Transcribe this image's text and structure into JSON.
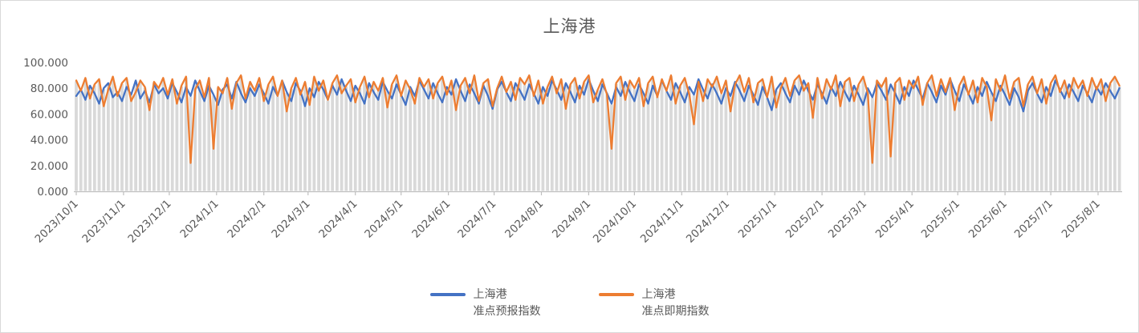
{
  "title": {
    "text": "上海港"
  },
  "legend": {
    "items": [
      {
        "line1": "上海港",
        "line2": "准点预报指数",
        "color": "#4472C4"
      },
      {
        "line1": "上海港",
        "line2": "准点即期指数",
        "color": "#ED7D31"
      }
    ]
  },
  "colors": {
    "forecast_line": "#4472C4",
    "spot_line": "#ED7D31",
    "drop_line": "#D9D9D9",
    "axis_line": "#BFBFBF",
    "text": "#595959"
  },
  "chart_data": {
    "type": "line",
    "title": "上海港",
    "xlabel": "",
    "ylabel": "",
    "ylim": [
      0,
      100
    ],
    "grid": false,
    "legend_position": "bottom",
    "drop_lines": true,
    "x_start_date": "2023/10/1",
    "x_step_days": 3,
    "y_tick_values": [
      0,
      20,
      40,
      60,
      80,
      100
    ],
    "y_tick_labels": [
      "0.000",
      "20.000",
      "40.000",
      "60.000",
      "80.000",
      "100.000"
    ],
    "x_tick_labels": [
      "2023/10/1",
      "2023/11/1",
      "2023/12/1",
      "2024/1/1",
      "2024/2/1",
      "2024/3/1",
      "2024/4/1",
      "2024/5/1",
      "2024/6/1",
      "2024/7/1",
      "2024/8/1",
      "2024/9/1",
      "2024/10/1",
      "2024/11/1",
      "2024/12/1",
      "2025/1/1",
      "2025/2/1",
      "2025/3/1",
      "2025/4/1",
      "2025/5/1",
      "2025/6/1",
      "2025/7/1",
      "2025/8/1"
    ],
    "x_tick_day_offsets": [
      0,
      31,
      61,
      92,
      123,
      152,
      183,
      213,
      244,
      274,
      305,
      336,
      366,
      397,
      427,
      458,
      489,
      517,
      548,
      578,
      609,
      639,
      670
    ],
    "series": [
      {
        "name": "上海港准点预报指数",
        "color": "#4472C4",
        "values": [
          74,
          79,
          71,
          82,
          76,
          68,
          80,
          84,
          73,
          77,
          70,
          81,
          75,
          86,
          72,
          78,
          69,
          83,
          76,
          80,
          72,
          84,
          77,
          69,
          81,
          74,
          86,
          78,
          70,
          82,
          75,
          67,
          79,
          83,
          72,
          85,
          76,
          69,
          80,
          74,
          83,
          76,
          68,
          81,
          74,
          86,
          77,
          70,
          84,
          78,
          66,
          80,
          73,
          85,
          79,
          71,
          82,
          75,
          87,
          78,
          70,
          82,
          76,
          68,
          84,
          77,
          71,
          85,
          78,
          72,
          83,
          75,
          67,
          81,
          74,
          86,
          79,
          72,
          84,
          76,
          69,
          81,
          75,
          87,
          78,
          70,
          83,
          76,
          68,
          82,
          74,
          64,
          79,
          85,
          77,
          70,
          84,
          78,
          71,
          83,
          76,
          68,
          81,
          74,
          86,
          79,
          71,
          84,
          77,
          69,
          82,
          75,
          87,
          78,
          70,
          83,
          76,
          68,
          81,
          74,
          85,
          77,
          70,
          83,
          76,
          68,
          82,
          74,
          86,
          78,
          71,
          84,
          77,
          69,
          81,
          75,
          87,
          79,
          72,
          83,
          76,
          68,
          80,
          74,
          85,
          78,
          70,
          82,
          75,
          67,
          81,
          73,
          63,
          79,
          84,
          76,
          69,
          82,
          75,
          86,
          78,
          71,
          83,
          76,
          68,
          81,
          74,
          85,
          77,
          70,
          82,
          75,
          67,
          80,
          73,
          84,
          78,
          71,
          83,
          76,
          68,
          81,
          74,
          86,
          79,
          72,
          84,
          77,
          69,
          82,
          75,
          87,
          78,
          70,
          83,
          76,
          68,
          81,
          74,
          85,
          77,
          70,
          82,
          75,
          67,
          80,
          73,
          62,
          78,
          84,
          76,
          69,
          81,
          74,
          86,
          79,
          72,
          83,
          77,
          70,
          82,
          76,
          69,
          81,
          75,
          84,
          78,
          72,
          80
        ]
      },
      {
        "name": "上海港准点即期指数",
        "color": "#ED7D31",
        "values": [
          86,
          78,
          88,
          72,
          83,
          87,
          66,
          79,
          89,
          74,
          84,
          88,
          70,
          77,
          86,
          81,
          63,
          85,
          80,
          88,
          75,
          87,
          68,
          82,
          89,
          22,
          79,
          86,
          73,
          88,
          33,
          81,
          76,
          88,
          64,
          84,
          90,
          72,
          85,
          78,
          88,
          70,
          83,
          89,
          74,
          86,
          62,
          80,
          88,
          75,
          85,
          67,
          89,
          78,
          86,
          71,
          84,
          90,
          76,
          82,
          87,
          69,
          81,
          89,
          73,
          85,
          78,
          88,
          65,
          83,
          90,
          74,
          86,
          79,
          68,
          88,
          81,
          87,
          72,
          84,
          89,
          75,
          86,
          63,
          82,
          88,
          76,
          90,
          70,
          84,
          87,
          66,
          80,
          89,
          77,
          85,
          71,
          88,
          83,
          90,
          74,
          86,
          68,
          81,
          89,
          76,
          87,
          64,
          83,
          88,
          72,
          85,
          90,
          69,
          79,
          87,
          75,
          33,
          84,
          89,
          71,
          86,
          80,
          88,
          66,
          84,
          89,
          73,
          87,
          78,
          90,
          68,
          82,
          88,
          75,
          52,
          85,
          70,
          87,
          81,
          89,
          76,
          86,
          62,
          83,
          90,
          77,
          88,
          69,
          84,
          87,
          73,
          89,
          65,
          80,
          88,
          74,
          86,
          90,
          78,
          84,
          57,
          88,
          72,
          87,
          79,
          90,
          66,
          85,
          88,
          70,
          83,
          89,
          76,
          22,
          86,
          81,
          88,
          27,
          84,
          88,
          71,
          86,
          80,
          89,
          67,
          84,
          90,
          74,
          87,
          77,
          88,
          63,
          82,
          89,
          75,
          86,
          69,
          88,
          81,
          55,
          87,
          78,
          90,
          72,
          85,
          88,
          66,
          83,
          89,
          76,
          87,
          68,
          84,
          90,
          77,
          86,
          73,
          88,
          80,
          86,
          74,
          88,
          79,
          87,
          70,
          84,
          89,
          82
        ]
      }
    ]
  }
}
